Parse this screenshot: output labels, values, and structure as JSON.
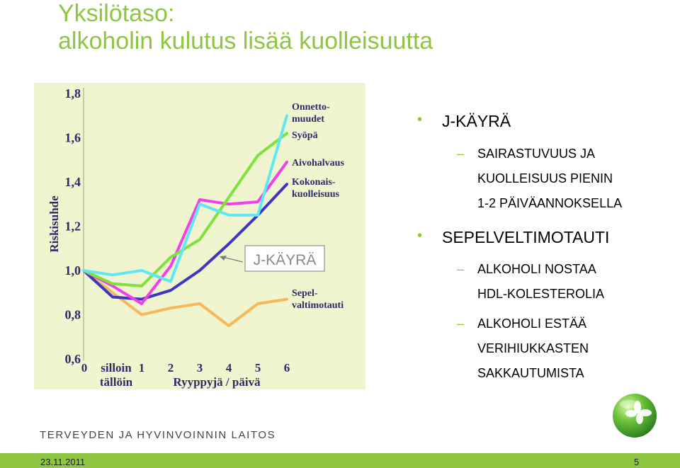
{
  "slide": {
    "title_line1": "Yksilötaso:",
    "title_line2": "alkoholin kulutus lisää kuolleisuutta",
    "accent_color": "#8ec641",
    "organization": "TERVEYDEN JA HYVINVOINNIN LAITOS",
    "date": "23.11.2011",
    "page_number": "5"
  },
  "bullets": [
    {
      "text": "J-KÄYRÄ",
      "sub": [
        {
          "lines": [
            "SAIRASTUVUUS JA",
            "KUOLLEISUUS PIENIN",
            "1-2 PÄIVÄANNOKSELLA"
          ]
        }
      ]
    },
    {
      "text": "SEPELVELTIMOTAUTI",
      "sub": [
        {
          "lines": [
            "ALKOHOLI NOSTAA",
            "HDL-KOLESTEROLIA"
          ]
        },
        {
          "lines": [
            "ALKOHOLI ESTÄÄ",
            "VERIHIUKKASTEN",
            "SAKKAUTUMISTA"
          ]
        }
      ]
    }
  ],
  "chart_data": {
    "type": "line",
    "ylabel": "Riskisuhde",
    "xlabel": "Ryyppyjä / päivä",
    "categories": [
      "0",
      "silloin tällöin",
      "1",
      "2",
      "3",
      "4",
      "5",
      "6"
    ],
    "x_tick_labels": [
      "0",
      "silloin",
      "tällöin",
      "1",
      "2",
      "3",
      "4",
      "5",
      "6"
    ],
    "y_ticks": [
      "0,6",
      "0,8",
      "1,0",
      "1,2",
      "1,4",
      "1,6",
      "1,8"
    ],
    "ylim": [
      0.6,
      1.8
    ],
    "grid": false,
    "background_color": "#f1f5cf",
    "annotation": "J-KÄYRÄ",
    "series": [
      {
        "name": "Onnetto-muudet",
        "label_lines": [
          "Onnetto-",
          "muudet"
        ],
        "color": "#5ee8f4",
        "values": [
          1.0,
          0.98,
          1.0,
          0.95,
          1.3,
          1.25,
          1.25,
          1.7
        ]
      },
      {
        "name": "Syöpä",
        "label_lines": [
          "Syöpä"
        ],
        "color": "#7ee23c",
        "values": [
          1.0,
          0.94,
          0.93,
          1.06,
          1.14,
          1.33,
          1.52,
          1.62
        ]
      },
      {
        "name": "Aivohalvaus",
        "label_lines": [
          "Aivohalvaus"
        ],
        "color": "#f040e6",
        "values": [
          1.0,
          0.93,
          0.85,
          1.02,
          1.32,
          1.3,
          1.31,
          1.49
        ]
      },
      {
        "name": "Kokonais-kuolleisuus",
        "label_lines": [
          "Kokonais-",
          "kuolleisuus"
        ],
        "color": "#3d36c4",
        "values": [
          1.0,
          0.88,
          0.87,
          0.91,
          1.0,
          1.12,
          1.25,
          1.39
        ]
      },
      {
        "name": "Sepel-valtimotauti",
        "label_lines": [
          "Sepel-",
          "valtimotauti"
        ],
        "color": "#f7b85a",
        "values": [
          1.0,
          0.9,
          0.8,
          0.83,
          0.85,
          0.75,
          0.85,
          0.87
        ]
      }
    ]
  }
}
